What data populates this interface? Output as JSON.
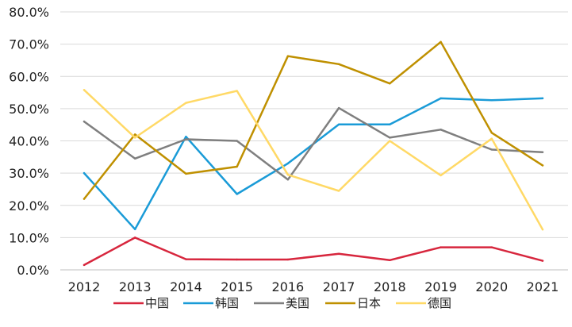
{
  "chart_data": {
    "type": "line",
    "title": "",
    "xlabel": "",
    "ylabel": "",
    "x": [
      "2012",
      "2013",
      "2014",
      "2015",
      "2016",
      "2017",
      "2018",
      "2019",
      "2020",
      "2021"
    ],
    "ylim": [
      0,
      80
    ],
    "y_ticks": [
      0,
      10,
      20,
      30,
      40,
      50,
      60,
      70,
      80
    ],
    "y_tick_labels": [
      "0.0%",
      "10.0%",
      "20.0%",
      "30.0%",
      "40.0%",
      "50.0%",
      "60.0%",
      "70.0%",
      "80.0%"
    ],
    "grid": "horizontal",
    "legend_position": "bottom",
    "series": [
      {
        "name": "中国",
        "color": "#d7263d",
        "values": [
          1.5,
          10.0,
          3.3,
          3.2,
          3.2,
          5.0,
          3.0,
          7.0,
          7.0,
          2.8
        ]
      },
      {
        "name": "韩国",
        "color": "#1a9bd7",
        "values": [
          30.0,
          12.6,
          41.3,
          23.5,
          33.0,
          45.1,
          45.1,
          53.2,
          52.6,
          53.2
        ]
      },
      {
        "name": "美国",
        "color": "#7f7f7f",
        "values": [
          46.0,
          34.5,
          40.5,
          40.0,
          28.0,
          50.2,
          41.0,
          43.5,
          37.3,
          36.5
        ]
      },
      {
        "name": "日本",
        "color": "#bf9000",
        "values": [
          22.0,
          42.0,
          29.8,
          32.0,
          66.3,
          63.8,
          57.8,
          70.7,
          42.5,
          32.4
        ]
      },
      {
        "name": "德国",
        "color": "#ffd966",
        "values": [
          55.8,
          41.0,
          51.8,
          55.5,
          29.5,
          24.5,
          40.0,
          29.3,
          40.7,
          12.5
        ]
      }
    ]
  }
}
